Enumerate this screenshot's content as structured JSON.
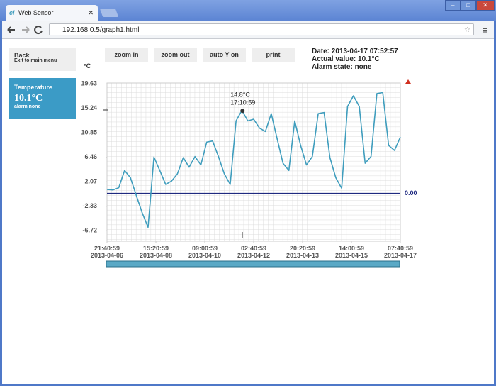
{
  "browser": {
    "tab_title": "Web Sensor",
    "url": "192.168.0.5/graph1.html"
  },
  "sidebar": {
    "back": "Back",
    "back_hint": "Exit to main menu",
    "sensor_name": "Temperature",
    "sensor_value": "10.1°C",
    "sensor_alarm": "alarm none"
  },
  "toolbar": {
    "buttons": [
      "zoom in",
      "zoom out",
      "auto Y on",
      "print"
    ]
  },
  "status": {
    "date": "Date: 2013-04-17 07:52:57",
    "actual": "Actual value: 10.1°C",
    "alarm": "Alarm state: none"
  },
  "chart_data": {
    "type": "line",
    "y_unit": "°C",
    "color": "#3f9dbd",
    "x": [
      "2013-04-06 21:40:59",
      "2013-04-07 02:40:59",
      "2013-04-07 07:40:59",
      "2013-04-07 12:40:59",
      "2013-04-07 17:40:59",
      "2013-04-07 22:40:59",
      "2013-04-08 03:40:59",
      "2013-04-08 08:40:59",
      "2013-04-08 13:40:59",
      "2013-04-08 18:40:59",
      "2013-04-08 23:40:59",
      "2013-04-09 04:40:59",
      "2013-04-09 09:40:59",
      "2013-04-09 14:40:59",
      "2013-04-09 19:40:59",
      "2013-04-10 00:40:59",
      "2013-04-10 05:40:59",
      "2013-04-10 10:40:59",
      "2013-04-10 15:40:59",
      "2013-04-10 20:40:59",
      "2013-04-11 01:40:59",
      "2013-04-11 06:40:59",
      "2013-04-11 11:40:59",
      "2013-04-11 16:40:59",
      "2013-04-11 21:40:59",
      "2013-04-12 02:40:59",
      "2013-04-12 07:40:59",
      "2013-04-12 12:40:59",
      "2013-04-12 17:40:59",
      "2013-04-12 22:40:59",
      "2013-04-13 03:40:59",
      "2013-04-13 08:40:59",
      "2013-04-13 13:40:59",
      "2013-04-13 18:40:59",
      "2013-04-13 23:40:59",
      "2013-04-14 04:40:59",
      "2013-04-14 09:40:59",
      "2013-04-14 14:40:59",
      "2013-04-14 19:40:59",
      "2013-04-15 00:40:59",
      "2013-04-15 05:40:59",
      "2013-04-15 10:40:59",
      "2013-04-15 15:40:59",
      "2013-04-15 20:40:59",
      "2013-04-16 01:40:59",
      "2013-04-16 06:40:59",
      "2013-04-16 11:40:59",
      "2013-04-16 16:40:59",
      "2013-04-16 21:40:59",
      "2013-04-17 02:40:59",
      "2013-04-17 07:40:59"
    ],
    "values": [
      0.7,
      0.6,
      1.0,
      4.1,
      2.8,
      -0.4,
      -3.5,
      -6.1,
      6.5,
      4.1,
      1.6,
      2.2,
      3.5,
      6.4,
      4.7,
      6.6,
      5.1,
      9.2,
      9.4,
      6.6,
      3.5,
      1.6,
      13.0,
      14.9,
      13.0,
      13.3,
      11.7,
      11.1,
      14.3,
      9.8,
      5.4,
      4.1,
      13.0,
      8.6,
      5.1,
      6.6,
      14.3,
      14.5,
      6.4,
      2.8,
      0.9,
      15.6,
      17.5,
      15.6,
      5.4,
      6.6,
      17.9,
      18.1,
      8.6,
      7.7,
      10.1
    ],
    "xlim": [
      "2013-04-06 21:40:59",
      "2013-04-17 07:40:59"
    ],
    "xticks": [
      {
        "value": "2013-04-06 21:40:59",
        "label": "21:40:59\n2013-04-06"
      },
      {
        "value": "2013-04-08 15:20:59",
        "label": "15:20:59\n2013-04-08"
      },
      {
        "value": "2013-04-10 09:00:59",
        "label": "09:00:59\n2013-04-10"
      },
      {
        "value": "2013-04-12 02:40:59",
        "label": "02:40:59\n2013-04-12"
      },
      {
        "value": "2013-04-13 20:20:59",
        "label": "20:20:59\n2013-04-13"
      },
      {
        "value": "2013-04-15 14:00:59",
        "label": "14:00:59\n2013-04-15"
      },
      {
        "value": "2013-04-17 07:40:59",
        "label": "07:40:59\n2013-04-17"
      }
    ],
    "ylim": [
      -8.6,
      19.8
    ],
    "yticks": [
      19.63,
      15.24,
      10.85,
      6.46,
      2.07,
      -2.33,
      -6.72
    ],
    "reference_line": {
      "value": 0,
      "label": "0.00",
      "color": "#1f2a80"
    },
    "annotation": {
      "x": "2013-04-11 17:10:59",
      "y": 14.8,
      "label": "14.8°C",
      "time_label": "17:10:59"
    }
  }
}
